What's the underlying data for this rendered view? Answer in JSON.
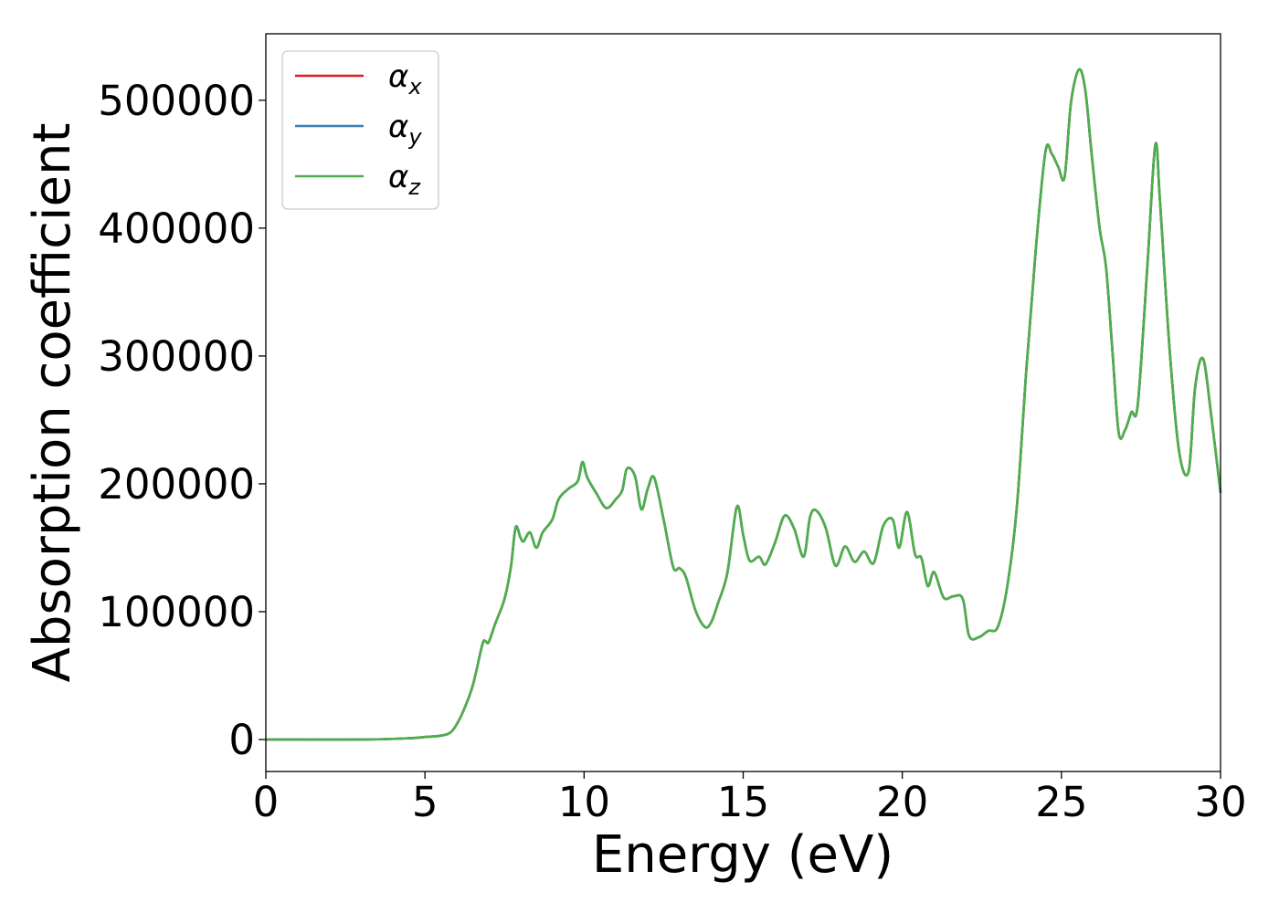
{
  "chart_data": {
    "type": "line",
    "title": "",
    "xlabel": "Energy (eV)",
    "ylabel": "Absorption coefficient",
    "xlim": [
      0,
      30
    ],
    "ylim": [
      -25000,
      552000
    ],
    "x_ticks": [
      0,
      5,
      10,
      15,
      20,
      25,
      30
    ],
    "y_ticks": [
      0,
      100000,
      200000,
      300000,
      400000,
      500000
    ],
    "grid": false,
    "legend": {
      "placement": "top-left"
    },
    "x": [
      0,
      3,
      4.5,
      5,
      5.5,
      5.8,
      6.0,
      6.2,
      6.5,
      6.8,
      6.9,
      7.0,
      7.2,
      7.5,
      7.7,
      7.85,
      8.0,
      8.1,
      8.3,
      8.5,
      8.7,
      9.0,
      9.2,
      9.5,
      9.8,
      9.95,
      10.1,
      10.4,
      10.7,
      11.0,
      11.2,
      11.35,
      11.6,
      11.8,
      12.0,
      12.2,
      12.5,
      12.8,
      13.0,
      13.2,
      13.5,
      13.8,
      14.0,
      14.2,
      14.5,
      14.8,
      15.0,
      15.2,
      15.5,
      15.7,
      16.0,
      16.3,
      16.6,
      16.9,
      17.1,
      17.3,
      17.6,
      17.9,
      18.2,
      18.5,
      18.8,
      19.1,
      19.4,
      19.7,
      19.9,
      20.15,
      20.4,
      20.6,
      20.8,
      21.0,
      21.3,
      21.6,
      21.9,
      22.1,
      22.4,
      22.7,
      23.0,
      23.3,
      23.6,
      23.9,
      24.2,
      24.5,
      24.7,
      24.9,
      25.1,
      25.3,
      25.55,
      25.75,
      25.95,
      26.2,
      26.4,
      26.6,
      26.8,
      27.0,
      27.2,
      27.4,
      27.7,
      27.95,
      28.1,
      28.4,
      28.7,
      29.0,
      29.2,
      29.45,
      29.7,
      30.0
    ],
    "series": [
      {
        "name": "αx",
        "color": "#e41a1c",
        "values": [
          0,
          0,
          1000,
          2000,
          3000,
          5500,
          12000,
          22000,
          42000,
          74000,
          77000,
          76000,
          90000,
          110000,
          135000,
          166000,
          158000,
          155000,
          162000,
          150000,
          162000,
          172000,
          188000,
          196000,
          202000,
          217000,
          205000,
          192000,
          181000,
          188000,
          195000,
          212000,
          206000,
          180000,
          196000,
          205000,
          172000,
          135000,
          134000,
          127000,
          101000,
          88000,
          92000,
          106000,
          130000,
          182000,
          160000,
          140000,
          143000,
          137000,
          154000,
          175000,
          165000,
          143000,
          174000,
          179000,
          165000,
          136000,
          151000,
          139000,
          147000,
          138000,
          167000,
          172000,
          150000,
          178000,
          145000,
          142000,
          120000,
          131000,
          111000,
          112000,
          110000,
          81000,
          80000,
          85000,
          88000,
          120000,
          182000,
          290000,
          385000,
          460000,
          458000,
          448000,
          440000,
          498000,
          524000,
          508000,
          458000,
          400000,
          370000,
          305000,
          240000,
          242000,
          256000,
          262000,
          370000,
          465000,
          420000,
          305000,
          225000,
          210000,
          275000,
          298000,
          255000,
          193000
        ]
      },
      {
        "name": "αy",
        "color": "#377eb8",
        "values": [
          0,
          0,
          1000,
          2000,
          3000,
          5500,
          12000,
          22000,
          42000,
          74000,
          77000,
          76000,
          90000,
          110000,
          135000,
          166000,
          158000,
          155000,
          162000,
          150000,
          162000,
          172000,
          188000,
          196000,
          202000,
          217000,
          205000,
          192000,
          181000,
          188000,
          195000,
          212000,
          206000,
          180000,
          196000,
          205000,
          172000,
          135000,
          134000,
          127000,
          101000,
          88000,
          92000,
          106000,
          130000,
          182000,
          160000,
          140000,
          143000,
          137000,
          154000,
          175000,
          165000,
          143000,
          174000,
          179000,
          165000,
          136000,
          151000,
          139000,
          147000,
          138000,
          167000,
          172000,
          150000,
          178000,
          145000,
          142000,
          120000,
          131000,
          111000,
          112000,
          110000,
          81000,
          80000,
          85000,
          88000,
          120000,
          182000,
          290000,
          385000,
          460000,
          458000,
          448000,
          440000,
          498000,
          524000,
          508000,
          458000,
          400000,
          370000,
          305000,
          240000,
          242000,
          256000,
          262000,
          370000,
          465000,
          420000,
          305000,
          225000,
          210000,
          275000,
          298000,
          255000,
          193000
        ]
      },
      {
        "name": "αz",
        "color": "#4daf4a",
        "values": [
          0,
          0,
          1000,
          2000,
          3000,
          5500,
          12000,
          22000,
          42000,
          74000,
          77000,
          76000,
          90000,
          110000,
          135000,
          166000,
          158000,
          155000,
          162000,
          150000,
          162000,
          172000,
          188000,
          196000,
          202000,
          217000,
          205000,
          192000,
          181000,
          188000,
          195000,
          212000,
          206000,
          180000,
          196000,
          205000,
          172000,
          135000,
          134000,
          127000,
          101000,
          88000,
          92000,
          106000,
          130000,
          182000,
          160000,
          140000,
          143000,
          137000,
          154000,
          175000,
          165000,
          143000,
          174000,
          179000,
          165000,
          136000,
          151000,
          139000,
          147000,
          138000,
          167000,
          172000,
          150000,
          178000,
          145000,
          142000,
          120000,
          131000,
          111000,
          112000,
          110000,
          81000,
          80000,
          85000,
          88000,
          120000,
          182000,
          290000,
          385000,
          460000,
          458000,
          448000,
          440000,
          498000,
          524000,
          508000,
          458000,
          400000,
          370000,
          305000,
          240000,
          242000,
          256000,
          262000,
          370000,
          465000,
          420000,
          305000,
          225000,
          210000,
          275000,
          298000,
          255000,
          193000
        ]
      }
    ],
    "legend_entries": [
      {
        "symbol": "α",
        "subscript": "x",
        "color": "#e41a1c"
      },
      {
        "symbol": "α",
        "subscript": "y",
        "color": "#377eb8"
      },
      {
        "symbol": "α",
        "subscript": "z",
        "color": "#4daf4a"
      }
    ]
  }
}
